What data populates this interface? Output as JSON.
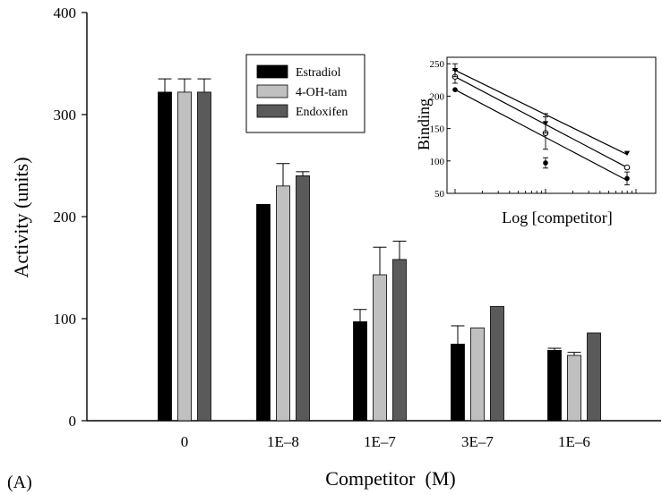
{
  "chart_data": [
    {
      "type": "bar",
      "panel_label": "(A)",
      "xlabel": "Competitor  (M)",
      "ylabel": "Activity (units)",
      "ylim": [
        0,
        400
      ],
      "yticks": [
        "0",
        "100",
        "200",
        "300",
        "400"
      ],
      "categories": [
        "0",
        "1E–8",
        "1E–7",
        "3E–7",
        "1E–6"
      ],
      "series": [
        {
          "name": "Estradiol",
          "color": "#000000",
          "values": [
            322,
            212,
            97,
            75,
            69
          ],
          "errors": [
            13,
            0,
            12,
            18,
            2
          ]
        },
        {
          "name": "4-OH-tam",
          "color": "#c0c0c0",
          "values": [
            322,
            230,
            143,
            91,
            64
          ],
          "errors": [
            13,
            22,
            27,
            0,
            3
          ]
        },
        {
          "name": "Endoxifen",
          "color": "#5a5a5a",
          "values": [
            322,
            240,
            158,
            112,
            86
          ],
          "errors": [
            13,
            4,
            18,
            0,
            0
          ]
        }
      ],
      "legend_position": "top-center",
      "grid": false
    },
    {
      "type": "line",
      "role": "inset",
      "xlabel": "Log [competitor]",
      "ylabel": "Binding",
      "x_scale": "log",
      "ylim": [
        50,
        260
      ],
      "yticks": [
        "50",
        "100",
        "150",
        "200",
        "250"
      ],
      "x": [
        "1E-8",
        "1E-7",
        "1E-6"
      ],
      "series": [
        {
          "marker": "filled-circle",
          "values": [
            210,
            97,
            73
          ],
          "errors": [
            0,
            8,
            10
          ]
        },
        {
          "marker": "open-circle",
          "values": [
            230,
            143,
            90
          ],
          "errors": [
            10,
            25,
            0
          ]
        },
        {
          "marker": "filled-triangle",
          "values": [
            240,
            158,
            112
          ],
          "errors": [
            10,
            15,
            0
          ]
        }
      ],
      "fit_lines": [
        {
          "values": [
            210,
            140,
            70
          ]
        },
        {
          "values": [
            230,
            160,
            90
          ]
        },
        {
          "values": [
            240,
            175,
            110
          ]
        }
      ],
      "grid": false
    }
  ]
}
